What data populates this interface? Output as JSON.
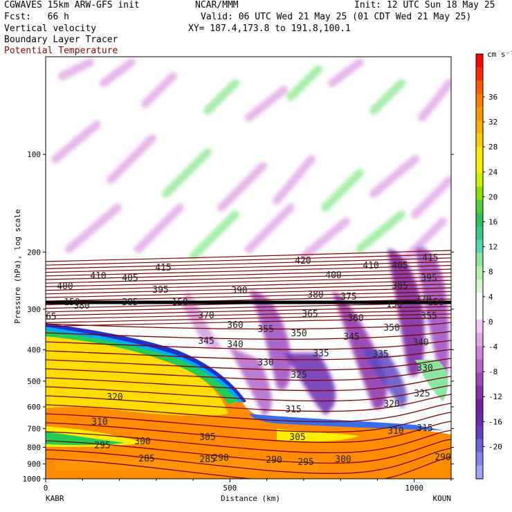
{
  "header": {
    "model": "CGWAVES 15km ARW-GFS init",
    "org": "NCAR/MMM",
    "init": "Init: 12 UTC Sun 18 May 25",
    "fcst": "Fcst:   66 h",
    "valid": "Valid: 06 UTC Wed 21 May 25 (01 CDT Wed 21 May 25)",
    "field1": "Vertical velocity",
    "xy": "XY= 187.4,173.8 to 191.8,100.1",
    "field2": "Boundary Layer Tracer",
    "field3": "Potential Temperature"
  },
  "colors": {
    "isentrope": "#7a0000",
    "field3_text": "#8b0000"
  },
  "chart_data": {
    "type": "heatmap",
    "xlabel": "Distance (km)",
    "ylabel": "Pressure (hPa), log scale",
    "xlim": [
      0,
      1100
    ],
    "ylim": [
      1000,
      50
    ],
    "y_scale": "log",
    "x_ticks": [
      0,
      500,
      1000
    ],
    "y_ticks": [
      100,
      200,
      300,
      400,
      500,
      600,
      700,
      800,
      900,
      1000
    ],
    "endpoints": {
      "left": "KABR",
      "right": "KOUN"
    },
    "colorbar": {
      "unit": "cm s⁻¹",
      "ticks": [
        "36",
        "32",
        "28",
        "24",
        "20",
        "16",
        "12",
        "8",
        "4",
        "0",
        "-4",
        "-8",
        "-12",
        "-16",
        "-20"
      ],
      "colors": [
        "#ff0000",
        "#ff2a00",
        "#ff5a00",
        "#ff7a00",
        "#ff9500",
        "#ffb000",
        "#ffcc00",
        "#ffe800",
        "#f0f000",
        "#c8f000",
        "#8de000",
        "#4fcf3d",
        "#2fc060",
        "#35c98c",
        "#55d6b5",
        "#8ae6a0",
        "#b5f0a8",
        "#d8f7d0",
        "#ffffff",
        "#ffffff",
        "#f0c8f0",
        "#e0a6e6",
        "#cf85d8",
        "#b864c8",
        "#a046b5",
        "#8a30a8",
        "#7620a0",
        "#6a2cae",
        "#6040c0",
        "#6a64d6",
        "#8484ea",
        "#a0a4f5"
      ]
    },
    "isentropes": [
      {
        "value": "285",
        "labels": [
          [
            300,
            663
          ],
          [
            212,
            662
          ]
        ]
      },
      {
        "value": "290",
        "labels": [
          [
            640,
            660
          ],
          [
            396,
            664
          ],
          [
            319,
            661
          ]
        ]
      },
      {
        "value": "295",
        "labels": [
          [
            148,
            643
          ],
          [
            442,
            667
          ]
        ]
      },
      {
        "value": "300",
        "labels": [
          [
            206,
            637
          ],
          [
            496,
            663
          ]
        ]
      },
      {
        "value": "305",
        "labels": [
          [
            300,
            631
          ],
          [
            430,
            631
          ]
        ]
      },
      {
        "value": "310",
        "labels": [
          [
            144,
            609
          ],
          [
            572,
            622
          ]
        ]
      },
      {
        "value": "315",
        "labels": [
          [
            424,
            591
          ],
          [
            614,
            618
          ]
        ]
      },
      {
        "value": "320",
        "labels": [
          [
            166,
            573
          ],
          [
            566,
            583
          ]
        ]
      },
      {
        "value": "325",
        "labels": [
          [
            432,
            541
          ],
          [
            610,
            568
          ]
        ]
      },
      {
        "value": "330",
        "labels": [
          [
            384,
            523
          ],
          [
            614,
            531
          ]
        ]
      },
      {
        "value": "335",
        "labels": [
          [
            464,
            510
          ],
          [
            550,
            511
          ]
        ]
      },
      {
        "value": "340",
        "labels": [
          [
            340,
            497
          ],
          [
            608,
            494
          ]
        ]
      },
      {
        "value": "345",
        "labels": [
          [
            298,
            492
          ],
          [
            508,
            486
          ]
        ]
      },
      {
        "value": "350",
        "labels": [
          [
            432,
            481
          ],
          [
            566,
            473
          ]
        ]
      },
      {
        "value": "355",
        "labels": [
          [
            384,
            475
          ],
          [
            620,
            456
          ]
        ]
      },
      {
        "value": "360",
        "labels": [
          [
            340,
            469
          ],
          [
            514,
            459
          ]
        ]
      },
      {
        "value": "365",
        "labels": [
          [
            70,
            457
          ],
          [
            448,
            453
          ]
        ]
      },
      {
        "value": "370",
        "labels": [
          [
            298,
            455
          ],
          [
            612,
            432
          ]
        ]
      },
      {
        "value": "375",
        "labels": [
          [
            504,
            428
          ]
        ]
      },
      {
        "value": "380",
        "labels": [
          [
            118,
            441
          ],
          [
            456,
            425
          ]
        ]
      },
      {
        "value": "385",
        "labels": [
          [
            188,
            436
          ],
          [
            578,
            412
          ]
        ]
      },
      {
        "value": "390",
        "labels": [
          [
            346,
            419
          ]
        ]
      },
      {
        "value": "395",
        "labels": [
          [
            232,
            418
          ],
          [
            620,
            401
          ]
        ]
      },
      {
        "value": "400",
        "labels": [
          [
            94,
            413
          ],
          [
            482,
            397
          ]
        ]
      },
      {
        "value": "405",
        "labels": [
          [
            188,
            401
          ],
          [
            578,
            383
          ]
        ]
      },
      {
        "value": "410",
        "labels": [
          [
            142,
            398
          ],
          [
            536,
            383
          ]
        ]
      },
      {
        "value": "415",
        "labels": [
          [
            236,
            386
          ],
          [
            622,
            372
          ]
        ]
      },
      {
        "value": "420",
        "labels": [
          [
            438,
            376
          ]
        ]
      }
    ],
    "tropopause_marker": [
      {
        "label": "150",
        "pos": [
          104,
          437
        ]
      },
      {
        "label": "150",
        "pos": [
          260,
          437
        ]
      },
      {
        "label": "150",
        "pos": [
          570,
          440
        ]
      },
      {
        "label": "150",
        "pos": [
          630,
          437
        ]
      }
    ]
  }
}
